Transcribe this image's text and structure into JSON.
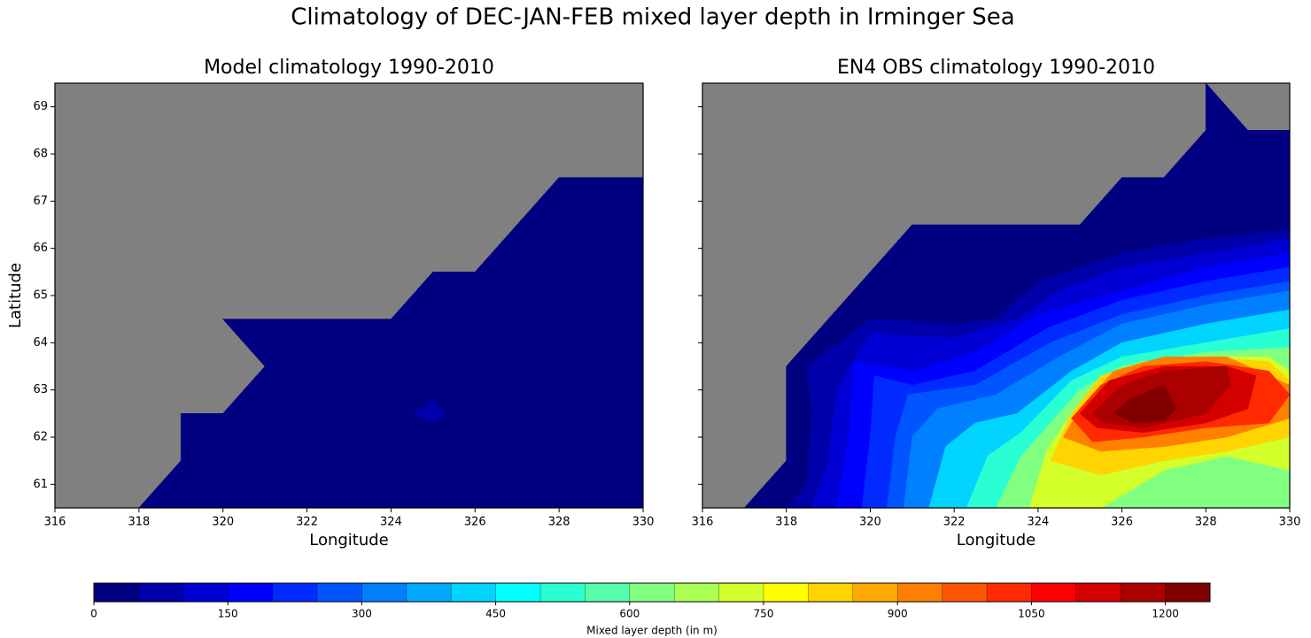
{
  "title": "Climatology of DEC-JAN-FEB mixed layer depth in Irminger Sea",
  "chart_data": [
    {
      "type": "contour",
      "title": "Model climatology 1990-2010",
      "xlabel": "Longitude",
      "ylabel": "Latitude",
      "xlim": [
        316,
        330
      ],
      "ylim": [
        60.5,
        69.5
      ],
      "xticks": [
        316,
        318,
        320,
        322,
        324,
        326,
        328,
        330
      ],
      "yticks": [
        61,
        62,
        63,
        64,
        65,
        66,
        67,
        68,
        69
      ],
      "ytick_labels": true,
      "background_color": "#808080",
      "regions": [
        {
          "level": 0,
          "polygon": [
            [
              318,
              60.5
            ],
            [
              319,
              61.5
            ],
            [
              319,
              62.5
            ],
            [
              320,
              62.5
            ],
            [
              321,
              63.5
            ],
            [
              320,
              64.5
            ],
            [
              324,
              64.5
            ],
            [
              325,
              65.5
            ],
            [
              326,
              65.5
            ],
            [
              328,
              67.5
            ],
            [
              330,
              67.5
            ],
            [
              330,
              60.5
            ]
          ]
        },
        {
          "level": 50,
          "polygon": [
            [
              324.5,
              62.5
            ],
            [
              325,
              62.8
            ],
            [
              325.3,
              62.5
            ],
            [
              325,
              62.3
            ]
          ]
        }
      ]
    },
    {
      "type": "contour",
      "title": "EN4 OBS climatology 1990-2010",
      "xlabel": "Longitude",
      "xlim": [
        316,
        330
      ],
      "ylim": [
        60.5,
        69.5
      ],
      "xticks": [
        316,
        318,
        320,
        322,
        324,
        326,
        328,
        330
      ],
      "yticks": [
        61,
        62,
        63,
        64,
        65,
        66,
        67,
        68,
        69
      ],
      "ytick_labels": false,
      "background_color": "#808080",
      "regions": [
        {
          "level": 0,
          "polygon": [
            [
              317,
              60.5
            ],
            [
              318,
              61.5
            ],
            [
              318,
              63.5
            ],
            [
              321,
              66.5
            ],
            [
              325,
              66.5
            ],
            [
              326,
              67.5
            ],
            [
              327,
              67.5
            ],
            [
              328,
              68.5
            ],
            [
              328,
              69.5
            ],
            [
              329,
              68.5
            ],
            [
              330,
              68.5
            ],
            [
              330,
              60.5
            ]
          ]
        },
        {
          "level": 50,
          "polygon": [
            [
              318,
              60.5
            ],
            [
              318.5,
              61
            ],
            [
              318.6,
              62.5
            ],
            [
              318.5,
              63.5
            ],
            [
              320,
              64.5
            ],
            [
              322,
              64.4
            ],
            [
              323,
              64.5
            ],
            [
              324,
              65.3
            ],
            [
              326,
              65.9
            ],
            [
              328,
              66.2
            ],
            [
              330,
              66.4
            ],
            [
              330,
              60.5
            ]
          ]
        },
        {
          "level": 100,
          "polygon": [
            [
              318.6,
              60.5
            ],
            [
              319,
              61.5
            ],
            [
              319.2,
              63
            ],
            [
              320,
              64.2
            ],
            [
              322,
              64.1
            ],
            [
              323.5,
              64.5
            ],
            [
              324.5,
              65.1
            ],
            [
              326,
              65.6
            ],
            [
              328,
              65.9
            ],
            [
              330,
              66.2
            ],
            [
              330,
              60.5
            ]
          ]
        },
        {
          "level": 150,
          "polygon": [
            [
              319.2,
              60.5
            ],
            [
              319.5,
              62
            ],
            [
              319.6,
              63.6
            ],
            [
              321,
              63.4
            ],
            [
              322.5,
              63.8
            ],
            [
              324,
              64.6
            ],
            [
              326,
              65.1
            ],
            [
              328,
              65.6
            ],
            [
              330,
              65.9
            ],
            [
              330,
              60.5
            ]
          ]
        },
        {
          "level": 200,
          "polygon": [
            [
              319.8,
              60.5
            ],
            [
              320,
              62
            ],
            [
              320.1,
              63.3
            ],
            [
              321,
              63.1
            ],
            [
              322.5,
              63.4
            ],
            [
              324.2,
              64.3
            ],
            [
              326,
              64.9
            ],
            [
              328,
              65.3
            ],
            [
              330,
              65.6
            ],
            [
              330,
              60.5
            ]
          ]
        },
        {
          "level": 250,
          "polygon": [
            [
              320.4,
              60.5
            ],
            [
              320.6,
              62
            ],
            [
              320.9,
              62.9
            ],
            [
              322.5,
              63.1
            ],
            [
              324.3,
              64
            ],
            [
              326,
              64.6
            ],
            [
              328,
              65
            ],
            [
              330,
              65.3
            ],
            [
              330,
              60.5
            ]
          ]
        },
        {
          "level": 300,
          "polygon": [
            [
              320.8,
              60.5
            ],
            [
              321,
              62
            ],
            [
              321.6,
              62.6
            ],
            [
              323,
              62.9
            ],
            [
              324.5,
              63.7
            ],
            [
              326,
              64.4
            ],
            [
              328,
              64.8
            ],
            [
              330,
              65.1
            ],
            [
              330,
              60.5
            ]
          ]
        },
        {
          "level": 400,
          "polygon": [
            [
              321.4,
              60.5
            ],
            [
              321.8,
              61.8
            ],
            [
              322.5,
              62.3
            ],
            [
              323.5,
              62.5
            ],
            [
              324.8,
              63.4
            ],
            [
              326,
              64
            ],
            [
              328,
              64.4
            ],
            [
              330,
              64.7
            ],
            [
              330,
              60.5
            ]
          ]
        },
        {
          "level": 500,
          "polygon": [
            [
              322.3,
              60.5
            ],
            [
              322.8,
              61.6
            ],
            [
              323.6,
              62.1
            ],
            [
              324.8,
              63.2
            ],
            [
              326,
              63.7
            ],
            [
              328,
              64
            ],
            [
              330,
              64.3
            ],
            [
              330,
              60.5
            ]
          ]
        },
        {
          "level": 600,
          "polygon": [
            [
              323,
              60.5
            ],
            [
              323.6,
              61.6
            ],
            [
              324.3,
              62.3
            ],
            [
              325,
              63
            ],
            [
              326,
              63.5
            ],
            [
              328,
              63.8
            ],
            [
              330,
              63.9
            ],
            [
              330,
              60.5
            ]
          ]
        },
        {
          "level": 700,
          "polygon": [
            [
              323.8,
              60.5
            ],
            [
              324.2,
              61.7
            ],
            [
              324.8,
              62.5
            ],
            [
              325.5,
              63.2
            ],
            [
              326.5,
              63.5
            ],
            [
              328,
              63.7
            ],
            [
              329.5,
              63.7
            ],
            [
              330,
              63.4
            ],
            [
              330,
              61.3
            ],
            [
              328.5,
              61.6
            ],
            [
              327,
              61.3
            ],
            [
              325.5,
              60.5
            ]
          ]
        },
        {
          "level": 800,
          "polygon": [
            [
              324.3,
              61.5
            ],
            [
              324.8,
              62.5
            ],
            [
              325.5,
              63.3
            ],
            [
              326.5,
              63.6
            ],
            [
              328,
              63.7
            ],
            [
              329.5,
              63.6
            ],
            [
              330,
              63.2
            ],
            [
              330,
              62
            ],
            [
              328.5,
              61.7
            ],
            [
              327,
              61.5
            ],
            [
              325.5,
              61.2
            ]
          ]
        },
        {
          "level": 900,
          "polygon": [
            [
              324.6,
              62
            ],
            [
              325,
              62.6
            ],
            [
              325.8,
              63.4
            ],
            [
              327,
              63.7
            ],
            [
              328.5,
              63.7
            ],
            [
              330,
              63.1
            ],
            [
              330,
              62.4
            ],
            [
              328.5,
              62
            ],
            [
              327,
              61.8
            ],
            [
              325.5,
              61.7
            ]
          ]
        },
        {
          "level": 1000,
          "polygon": [
            [
              324.8,
              62.4
            ],
            [
              325.5,
              63.1
            ],
            [
              326.5,
              63.5
            ],
            [
              328,
              63.6
            ],
            [
              329.5,
              63.4
            ],
            [
              330,
              62.9
            ],
            [
              329.5,
              62.3
            ],
            [
              328,
              62.2
            ],
            [
              326.5,
              62
            ],
            [
              325.3,
              61.9
            ]
          ]
        },
        {
          "level": 1100,
          "polygon": [
            [
              325,
              62.5
            ],
            [
              325.7,
              63.2
            ],
            [
              327,
              63.5
            ],
            [
              328.5,
              63.5
            ],
            [
              329.2,
              63.3
            ],
            [
              329,
              62.6
            ],
            [
              328,
              62.3
            ],
            [
              326.5,
              62.1
            ],
            [
              325.4,
              62.2
            ]
          ]
        },
        {
          "level": 1150,
          "polygon": [
            [
              325.3,
              62.5
            ],
            [
              326,
              63.1
            ],
            [
              327,
              63.4
            ],
            [
              328.5,
              63.5
            ],
            [
              328.6,
              63.1
            ],
            [
              328,
              62.5
            ],
            [
              326.5,
              62.2
            ],
            [
              325.6,
              62.3
            ]
          ]
        },
        {
          "level": 1200,
          "polygon": [
            [
              325.8,
              62.5
            ],
            [
              326.2,
              62.8
            ],
            [
              327,
              63.1
            ],
            [
              327.3,
              62.6
            ],
            [
              327,
              62.35
            ],
            [
              326.3,
              62.3
            ]
          ]
        }
      ]
    }
  ],
  "colorbar": {
    "label": "Mixed layer depth (in m)",
    "levels": [
      0,
      50,
      100,
      150,
      200,
      250,
      300,
      350,
      400,
      450,
      500,
      550,
      600,
      650,
      700,
      750,
      800,
      850,
      900,
      950,
      1000,
      1050,
      1100,
      1150,
      1200,
      1250
    ],
    "colors": [
      "#000080",
      "#0000aa",
      "#0000d4",
      "#0000ff",
      "#002aff",
      "#0055ff",
      "#0080ff",
      "#00aaff",
      "#00d4ff",
      "#00ffff",
      "#2affd4",
      "#55ffaa",
      "#80ff80",
      "#aaff55",
      "#d4ff2a",
      "#ffff00",
      "#ffd400",
      "#ffaa00",
      "#ff8000",
      "#ff5500",
      "#ff2a00",
      "#ff0000",
      "#d40000",
      "#aa0000",
      "#800000"
    ],
    "ticks": [
      0,
      150,
      300,
      450,
      600,
      750,
      900,
      1050,
      1200
    ]
  }
}
